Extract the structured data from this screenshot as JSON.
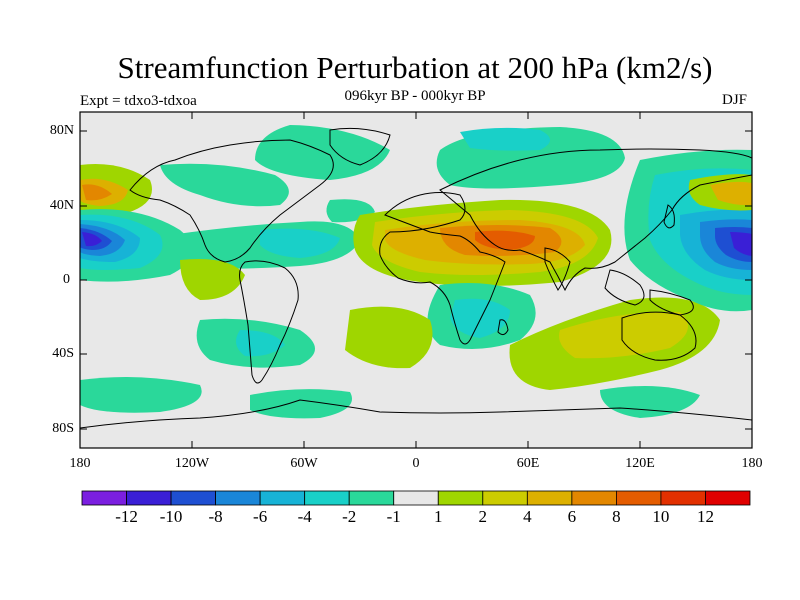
{
  "title": "Streamfunction Perturbation at 200 hPa (km2/s)",
  "subtitle_left": "Expt = tdxo3-tdxoa",
  "subtitle_center": "096kyr BP - 000kyr BP",
  "subtitle_right": "DJF",
  "lat_labels": [
    "80N",
    "40N",
    "0",
    "40S",
    "80S"
  ],
  "lon_labels": [
    "180",
    "120W",
    "60W",
    "0",
    "60E",
    "120E",
    "180"
  ],
  "colorbar": {
    "labels": [
      "-12",
      "-10",
      "-8",
      "-6",
      "-4",
      "-2",
      "-1",
      "1",
      "2",
      "4",
      "6",
      "8",
      "10",
      "12"
    ],
    "colors": [
      "#7b1fe0",
      "#3a1fd6",
      "#1e4fd2",
      "#1a86d8",
      "#17b3d6",
      "#19d0c8",
      "#2ad89a",
      "#e8e8e8",
      "#9fd600",
      "#cccc00",
      "#ddb000",
      "#e38700",
      "#e45c00",
      "#e23000",
      "#e00000"
    ]
  },
  "map_colors": {
    "background": "#e8e8e8",
    "coast": "#000000"
  }
}
